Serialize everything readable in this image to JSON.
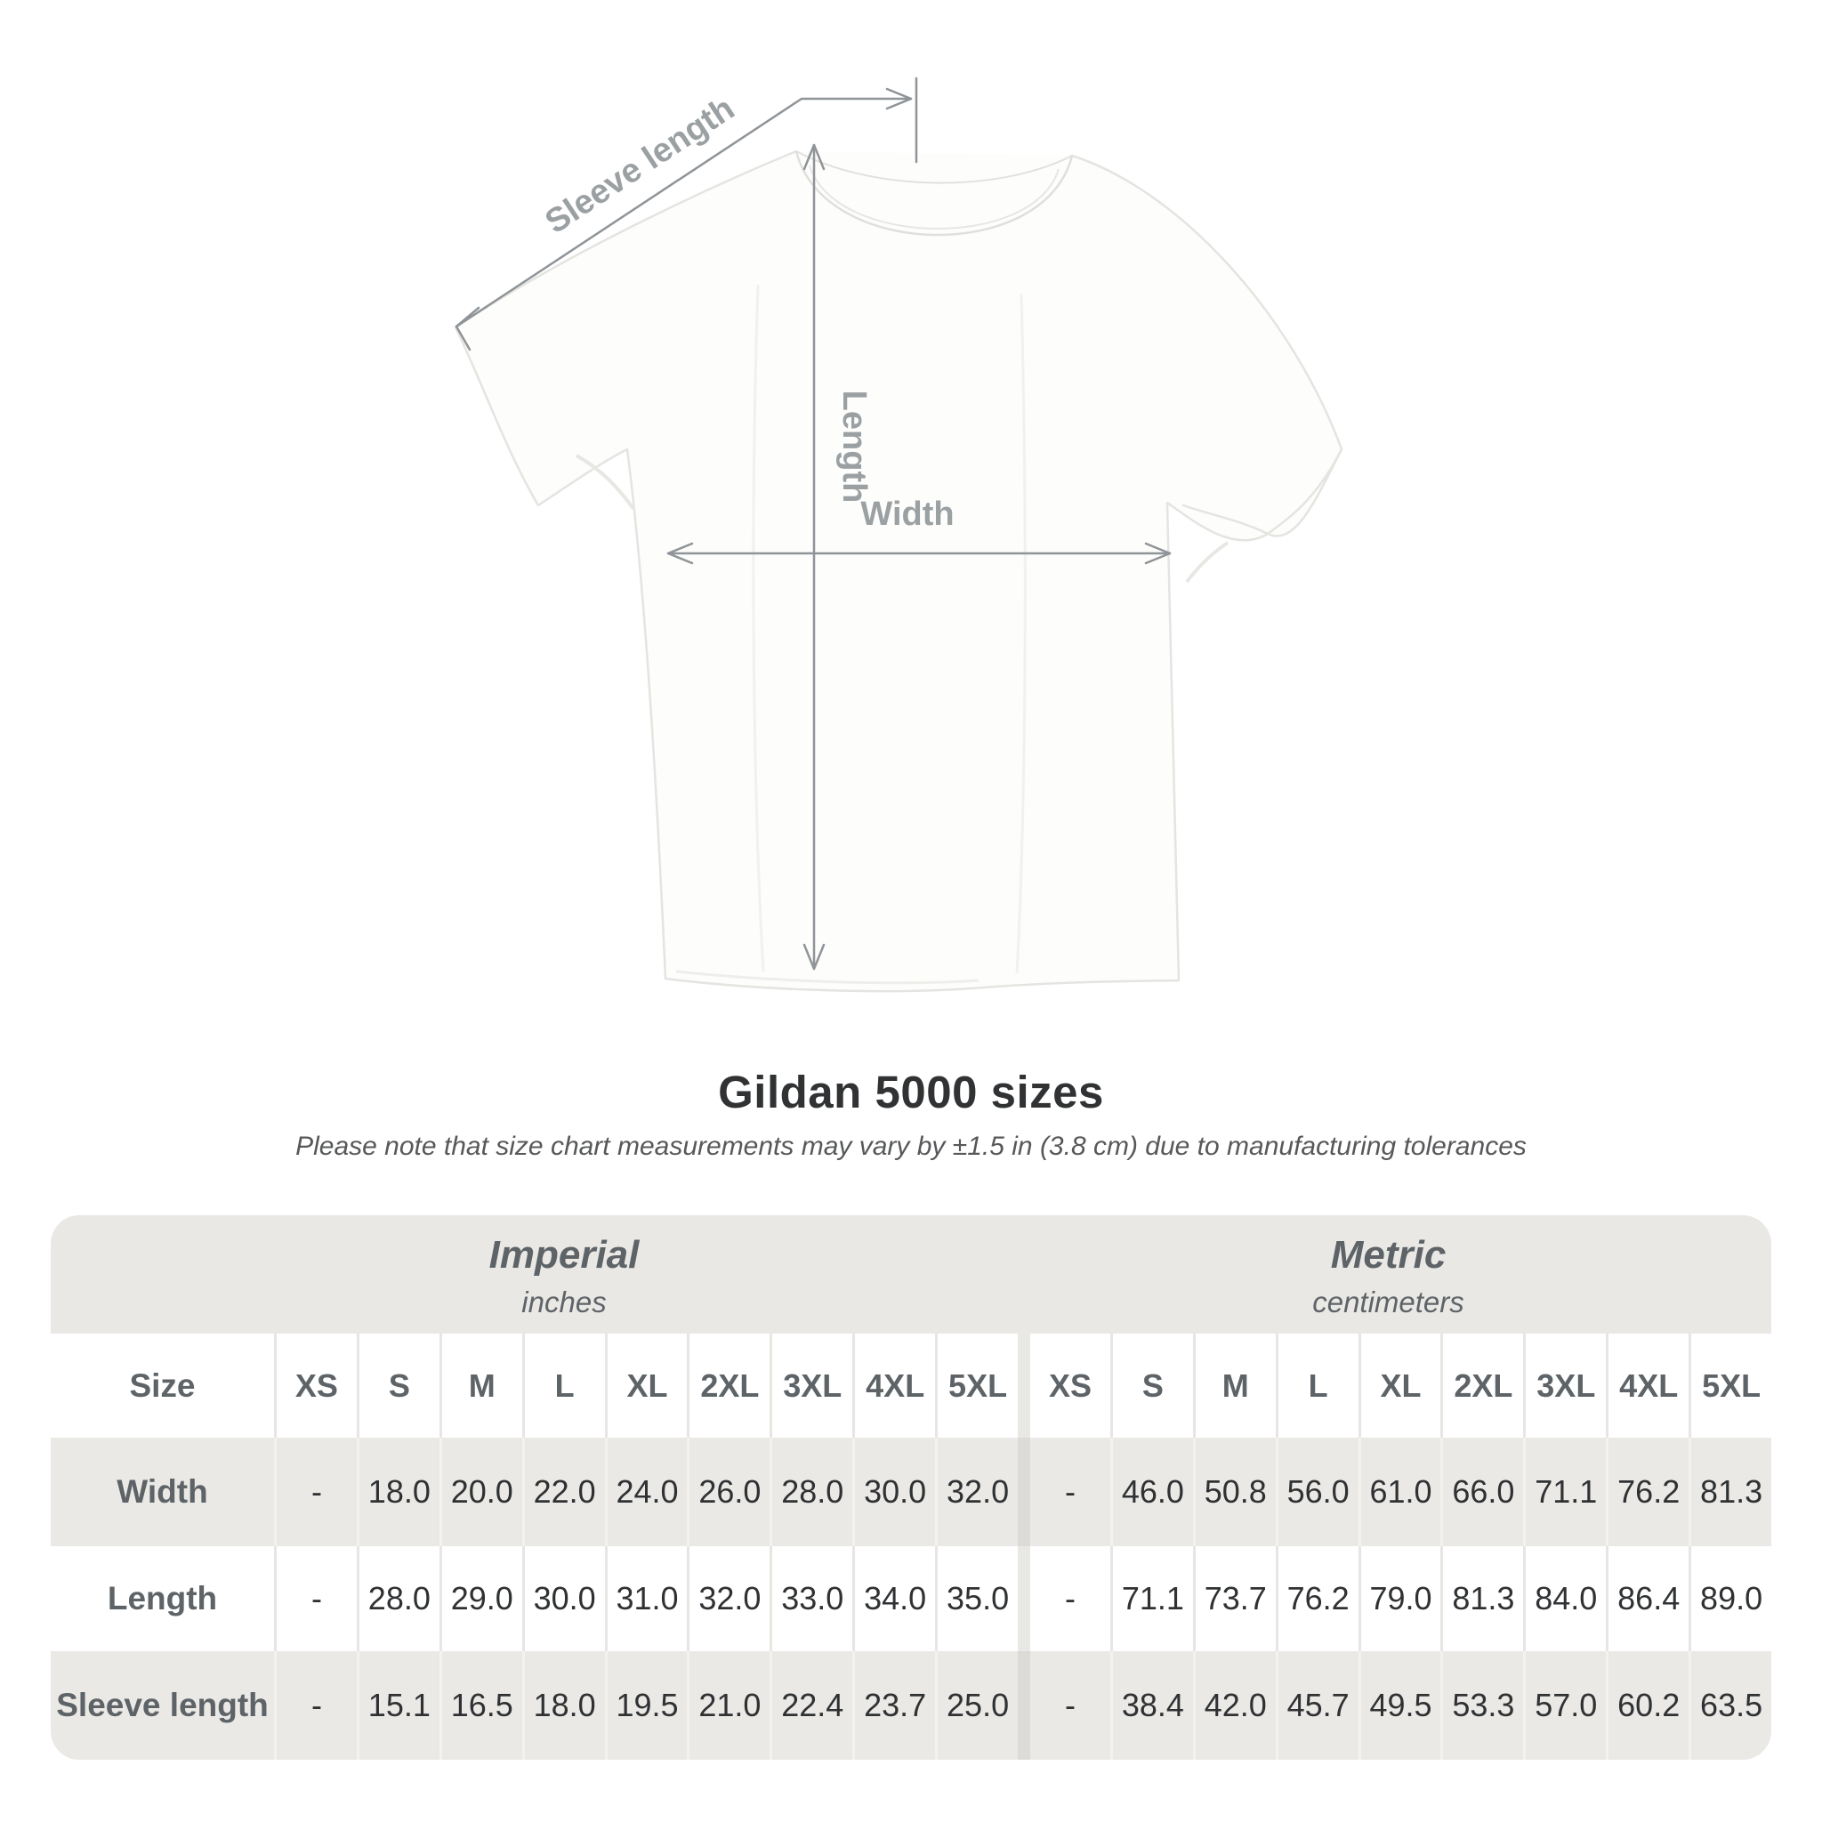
{
  "page": {
    "background": "#ffffff"
  },
  "diagram": {
    "labels": {
      "sleeve_length": "Sleeve length",
      "length": "Length",
      "width": "Width"
    },
    "label_color": "#9ba0a3",
    "line_color": "#8f9498"
  },
  "heading": {
    "title": "Gildan 5000 sizes",
    "subtitle": "Please note that size chart measurements may vary by ±1.5 in (3.8 cm) due to manufacturing tolerances"
  },
  "table": {
    "corner_label": "Size",
    "groups": [
      {
        "name": "Imperial",
        "unit": "inches"
      },
      {
        "name": "Metric",
        "unit": "centimeters"
      }
    ],
    "sizes": [
      "XS",
      "S",
      "M",
      "L",
      "XL",
      "2XL",
      "3XL",
      "4XL",
      "5XL"
    ],
    "rows": [
      {
        "label": "Width",
        "imperial": [
          "-",
          "18.0",
          "20.0",
          "22.0",
          "24.0",
          "26.0",
          "28.0",
          "30.0",
          "32.0"
        ],
        "metric": [
          "-",
          "46.0",
          "50.8",
          "56.0",
          "61.0",
          "66.0",
          "71.1",
          "76.2",
          "81.3"
        ]
      },
      {
        "label": "Length",
        "imperial": [
          "-",
          "28.0",
          "29.0",
          "30.0",
          "31.0",
          "32.0",
          "33.0",
          "34.0",
          "35.0"
        ],
        "metric": [
          "-",
          "71.1",
          "73.7",
          "76.2",
          "79.0",
          "81.3",
          "84.0",
          "86.4",
          "89.0"
        ]
      },
      {
        "label": "Sleeve length",
        "imperial": [
          "-",
          "15.1",
          "16.5",
          "18.0",
          "19.5",
          "21.0",
          "22.4",
          "23.7",
          "25.0"
        ],
        "metric": [
          "-",
          "38.4",
          "42.0",
          "45.7",
          "49.5",
          "53.3",
          "57.0",
          "60.2",
          "63.5"
        ]
      }
    ],
    "colors": {
      "band": "#e9e8e5",
      "row_gray": "#eae9e6",
      "row_white": "#ffffff",
      "header_text": "#5d6367",
      "value_text": "#2f3133"
    }
  },
  "chart_data": {
    "type": "table",
    "title": "Gildan 5000 sizes",
    "note": "Measurements may vary by ±1.5 in (3.8 cm) due to manufacturing tolerances",
    "groups": [
      {
        "name": "Imperial",
        "unit": "inches"
      },
      {
        "name": "Metric",
        "unit": "centimeters"
      }
    ],
    "sizes": [
      "XS",
      "S",
      "M",
      "L",
      "XL",
      "2XL",
      "3XL",
      "4XL",
      "5XL"
    ],
    "rows": [
      {
        "label": "Width",
        "imperial": [
          null,
          18.0,
          20.0,
          22.0,
          24.0,
          26.0,
          28.0,
          30.0,
          32.0
        ],
        "metric": [
          null,
          46.0,
          50.8,
          56.0,
          61.0,
          66.0,
          71.1,
          76.2,
          81.3
        ]
      },
      {
        "label": "Length",
        "imperial": [
          null,
          28.0,
          29.0,
          30.0,
          31.0,
          32.0,
          33.0,
          34.0,
          35.0
        ],
        "metric": [
          null,
          71.1,
          73.7,
          76.2,
          79.0,
          81.3,
          84.0,
          86.4,
          89.0
        ]
      },
      {
        "label": "Sleeve length",
        "imperial": [
          null,
          15.1,
          16.5,
          18.0,
          19.5,
          21.0,
          22.4,
          23.7,
          25.0
        ],
        "metric": [
          null,
          38.4,
          42.0,
          45.7,
          49.5,
          53.3,
          57.0,
          60.2,
          63.5
        ]
      }
    ]
  }
}
